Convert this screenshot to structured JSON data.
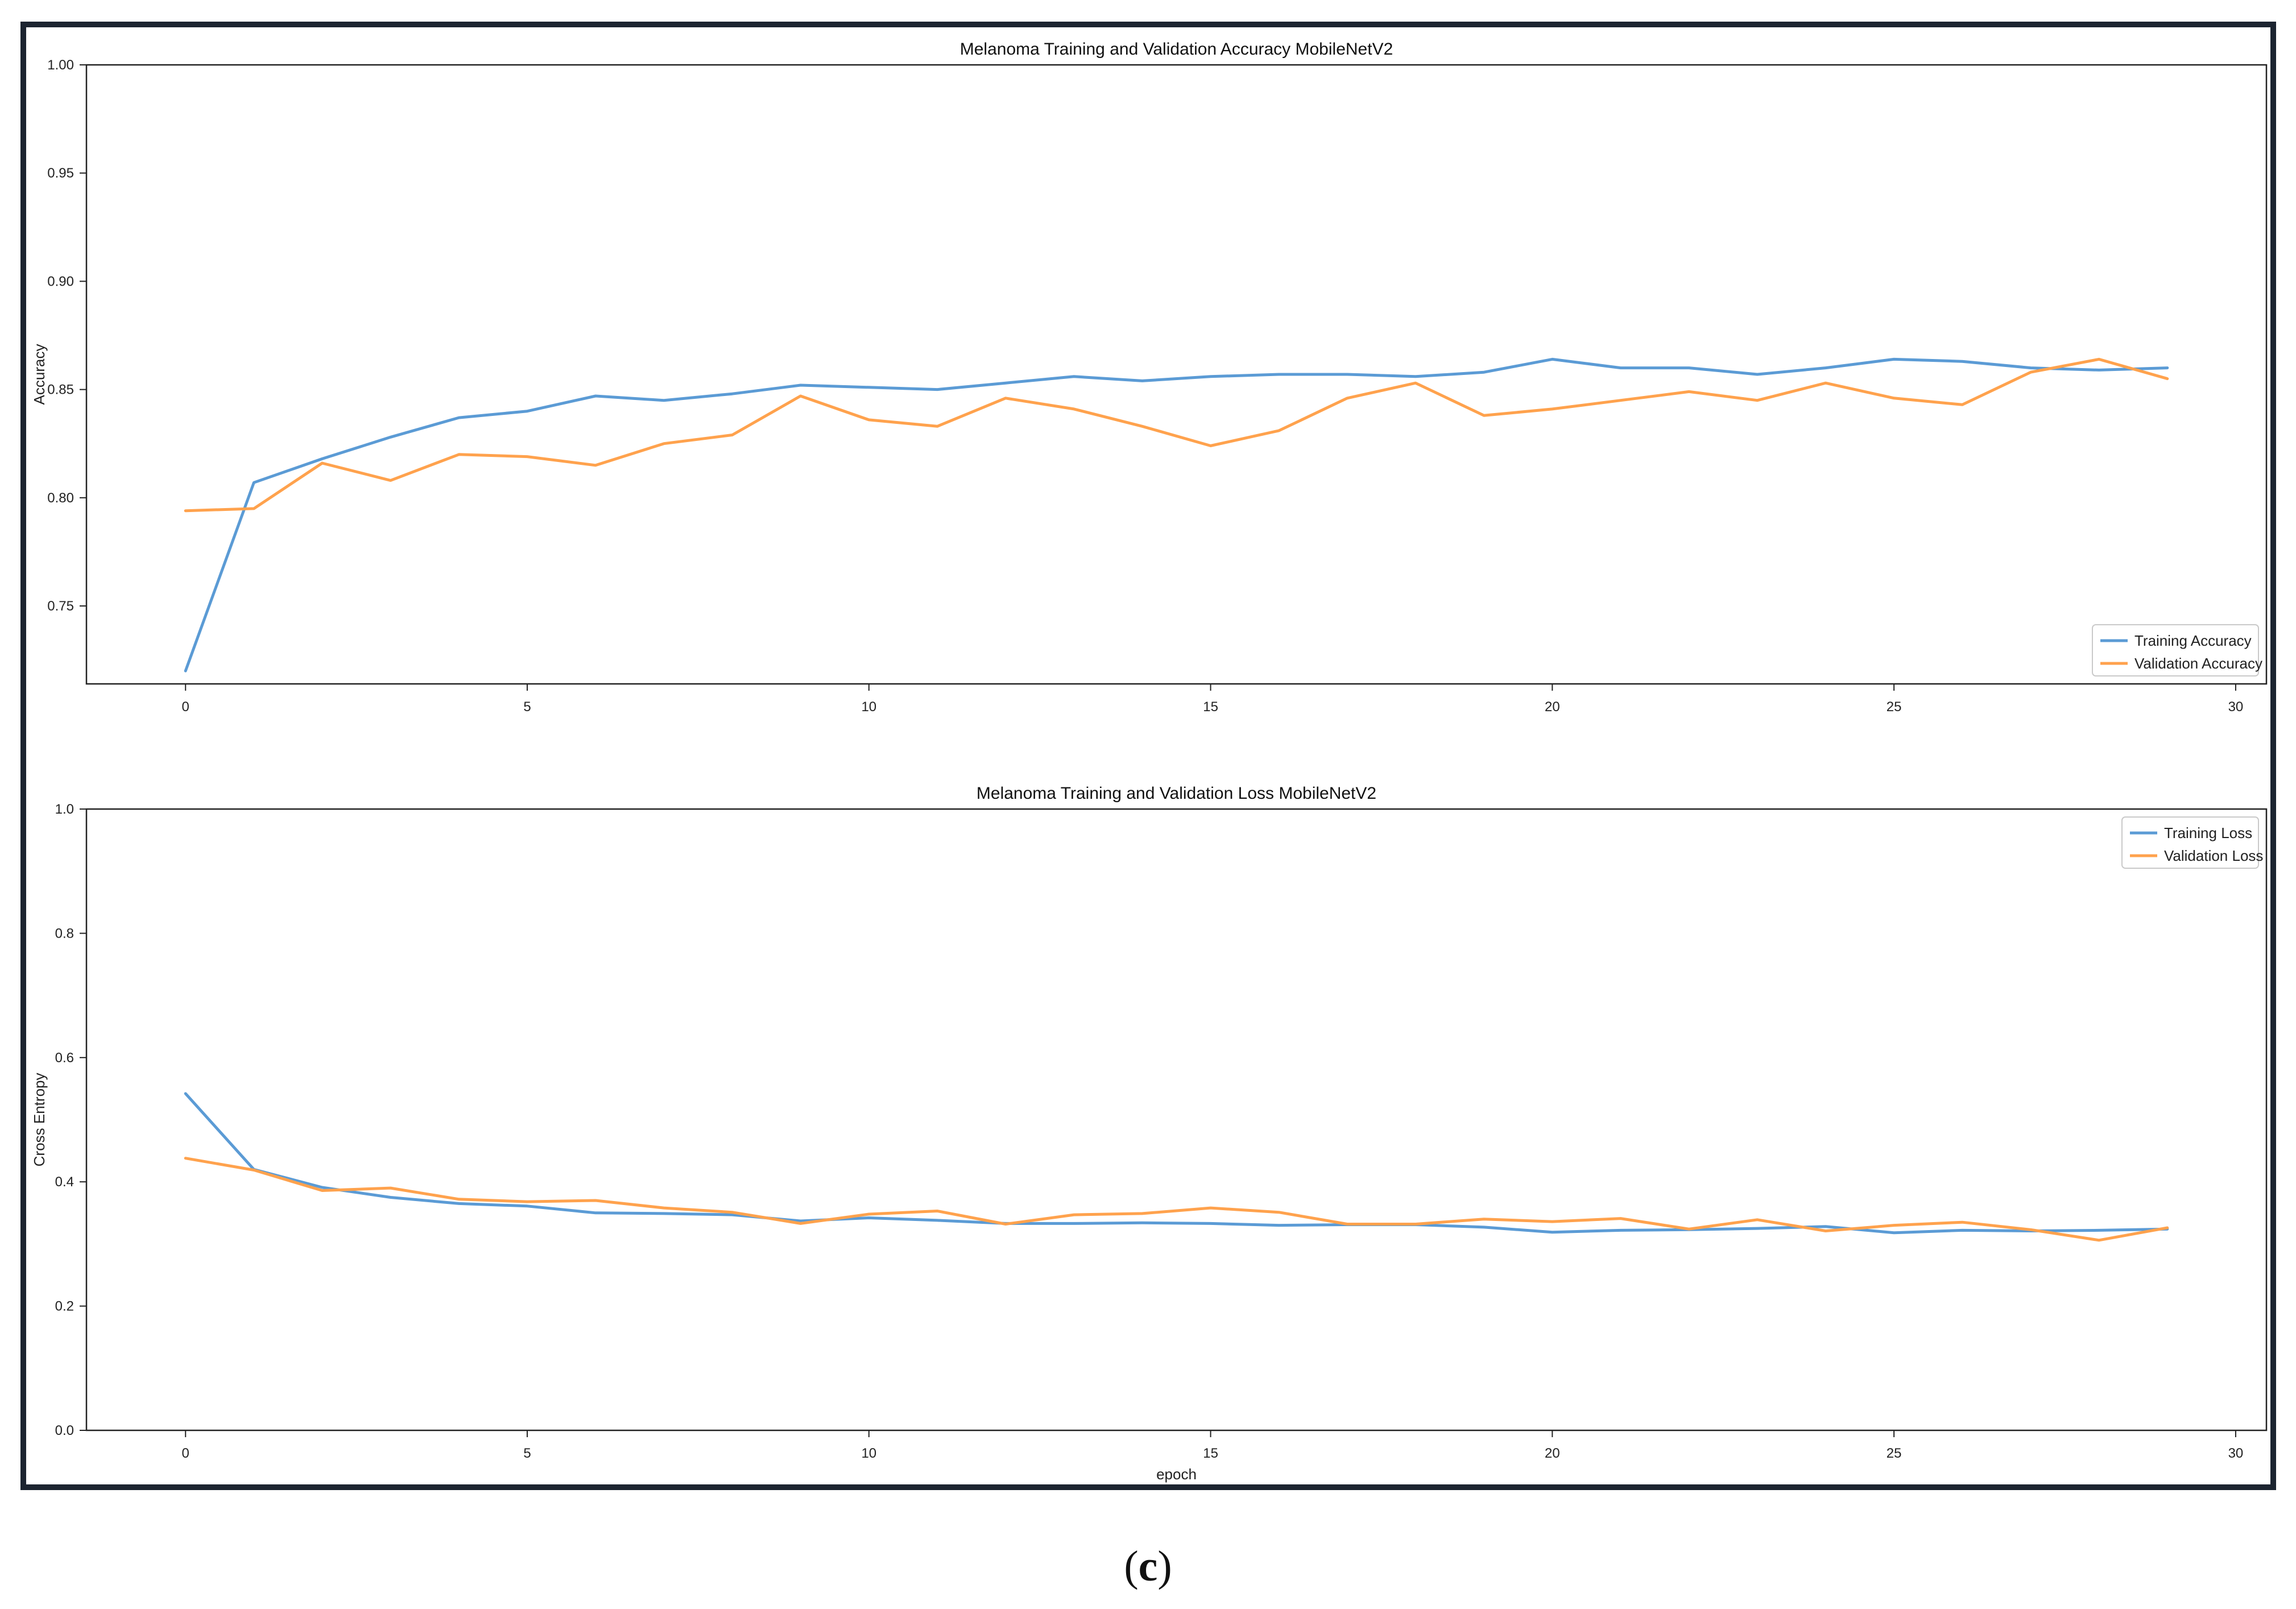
{
  "caption": {
    "open": "(",
    "letter": "c",
    "close": ")"
  },
  "colors": {
    "training": "#5b9bd5",
    "validation": "#ffa24d",
    "frame": "#1c2430"
  },
  "chart_data": [
    {
      "type": "line",
      "title": "Melanoma Training and Validation Accuracy MobileNetV2",
      "xlabel": "",
      "ylabel": "Accuracy",
      "xlim": [
        -1.45,
        30.45
      ],
      "ylim": [
        0.714,
        1.0
      ],
      "xticks": [
        0,
        5,
        10,
        15,
        20,
        25,
        30
      ],
      "yticks": [
        0.75,
        0.8,
        0.85,
        0.9,
        0.95,
        1.0
      ],
      "ytick_labels": [
        "0.75",
        "0.80",
        "0.85",
        "0.90",
        "0.95",
        "1.00"
      ],
      "legend_position": "lower-right",
      "grid": false,
      "x": [
        0,
        1,
        2,
        3,
        4,
        5,
        6,
        7,
        8,
        9,
        10,
        11,
        12,
        13,
        14,
        15,
        16,
        17,
        18,
        19,
        20,
        21,
        22,
        23,
        24,
        25,
        26,
        27,
        28,
        29
      ],
      "series": [
        {
          "name": "Training Accuracy",
          "color": "#5b9bd5",
          "values": [
            0.72,
            0.807,
            0.818,
            0.828,
            0.837,
            0.84,
            0.847,
            0.845,
            0.848,
            0.852,
            0.851,
            0.85,
            0.853,
            0.856,
            0.854,
            0.856,
            0.857,
            0.857,
            0.856,
            0.858,
            0.864,
            0.86,
            0.86,
            0.857,
            0.86,
            0.864,
            0.863,
            0.86,
            0.859,
            0.86
          ]
        },
        {
          "name": "Validation Accuracy",
          "color": "#ffa24d",
          "values": [
            0.794,
            0.795,
            0.816,
            0.808,
            0.82,
            0.819,
            0.815,
            0.825,
            0.829,
            0.847,
            0.836,
            0.833,
            0.846,
            0.841,
            0.833,
            0.824,
            0.831,
            0.846,
            0.853,
            0.838,
            0.841,
            0.845,
            0.849,
            0.845,
            0.853,
            0.846,
            0.843,
            0.858,
            0.864,
            0.855
          ]
        }
      ]
    },
    {
      "type": "line",
      "title": "Melanoma Training and Validation Loss MobileNetV2",
      "xlabel": "epoch",
      "ylabel": "Cross Entropy",
      "xlim": [
        -1.45,
        30.45
      ],
      "ylim": [
        0.0,
        1.0
      ],
      "xticks": [
        0,
        5,
        10,
        15,
        20,
        25,
        30
      ],
      "yticks": [
        0.0,
        0.2,
        0.4,
        0.6,
        0.8,
        1.0
      ],
      "ytick_labels": [
        "0.0",
        "0.2",
        "0.4",
        "0.6",
        "0.8",
        "1.0"
      ],
      "legend_position": "upper-right",
      "grid": false,
      "x": [
        0,
        1,
        2,
        3,
        4,
        5,
        6,
        7,
        8,
        9,
        10,
        11,
        12,
        13,
        14,
        15,
        16,
        17,
        18,
        19,
        20,
        21,
        22,
        23,
        24,
        25,
        26,
        27,
        28,
        29
      ],
      "series": [
        {
          "name": "Training Loss",
          "color": "#5b9bd5",
          "values": [
            0.542,
            0.42,
            0.391,
            0.375,
            0.365,
            0.361,
            0.35,
            0.349,
            0.347,
            0.337,
            0.342,
            0.338,
            0.333,
            0.333,
            0.334,
            0.333,
            0.33,
            0.331,
            0.331,
            0.327,
            0.319,
            0.322,
            0.323,
            0.325,
            0.328,
            0.318,
            0.322,
            0.321,
            0.322,
            0.324
          ]
        },
        {
          "name": "Validation Loss",
          "color": "#ffa24d",
          "values": [
            0.438,
            0.419,
            0.386,
            0.39,
            0.372,
            0.368,
            0.37,
            0.358,
            0.351,
            0.333,
            0.348,
            0.353,
            0.332,
            0.347,
            0.349,
            0.358,
            0.351,
            0.332,
            0.332,
            0.34,
            0.336,
            0.341,
            0.324,
            0.339,
            0.321,
            0.33,
            0.335,
            0.323,
            0.306,
            0.326
          ]
        }
      ]
    }
  ]
}
